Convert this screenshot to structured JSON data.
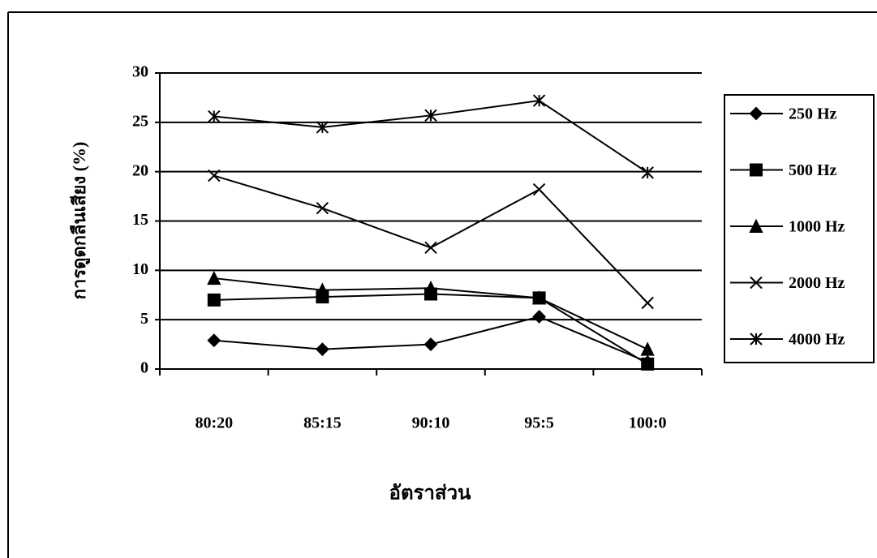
{
  "chart_data": {
    "type": "line",
    "x_label": "อัตราส่วน",
    "y_label": "การดูดกลืนเสียง (%)",
    "categories": [
      "80:20",
      "85:15",
      "90:10",
      "95:5",
      "100:0"
    ],
    "series": [
      {
        "name": "250 Hz",
        "color": "#000000",
        "marker": "diamond",
        "values": [
          2.9,
          2.0,
          2.5,
          5.3,
          0.7
        ]
      },
      {
        "name": "500 Hz",
        "color": "#000000",
        "marker": "square",
        "values": [
          7.0,
          7.3,
          7.6,
          7.2,
          0.5
        ]
      },
      {
        "name": "1000 Hz",
        "color": "#000000",
        "marker": "triangle",
        "values": [
          9.2,
          8.0,
          8.2,
          7.2,
          2.0
        ]
      },
      {
        "name": "2000 Hz",
        "color": "#000000",
        "marker": "x",
        "values": [
          19.6,
          16.3,
          12.3,
          18.2,
          6.7
        ]
      },
      {
        "name": "4000 Hz",
        "color": "#000000",
        "marker": "asterisk",
        "values": [
          25.6,
          24.5,
          25.7,
          27.2,
          19.9
        ]
      }
    ],
    "ylim": [
      0,
      30
    ],
    "yticks": [
      0,
      5,
      10,
      15,
      20,
      25,
      30
    ],
    "grid": true,
    "legend": "right"
  }
}
